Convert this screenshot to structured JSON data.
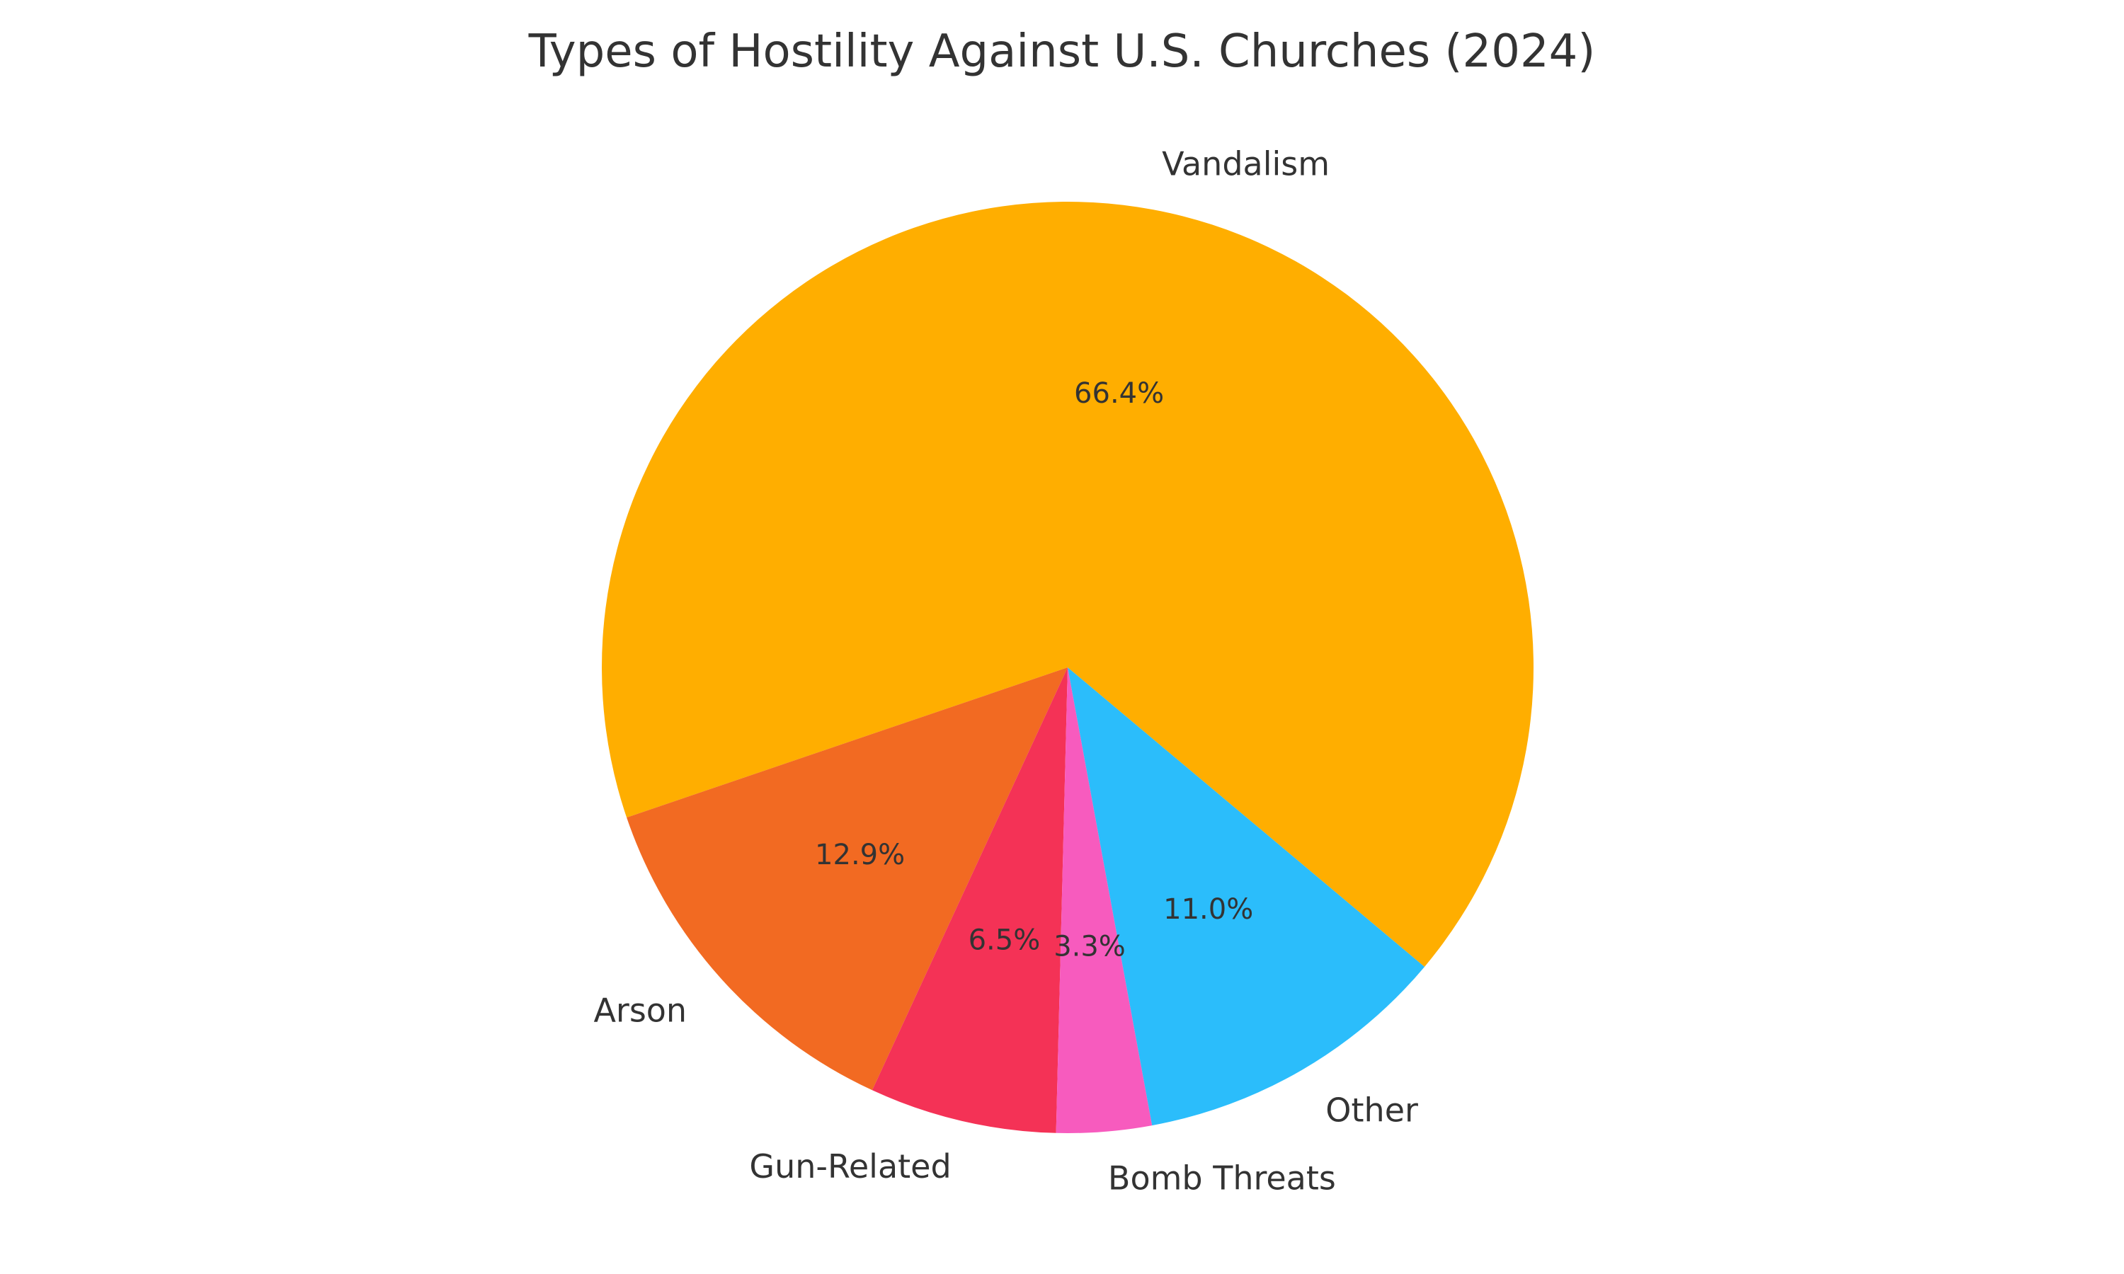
{
  "chart_data": {
    "type": "pie",
    "title": "Types of Hostility Against U.S. Churches (2024)",
    "start_angle_deg": -40,
    "direction": "counterclockwise",
    "slices": [
      {
        "label": "Vandalism",
        "value": 66.4,
        "pct_label": "66.4%",
        "color": "#FFAE00"
      },
      {
        "label": "Arson",
        "value": 12.9,
        "pct_label": "12.9%",
        "color": "#F26A22"
      },
      {
        "label": "Gun-Related",
        "value": 6.5,
        "pct_label": "6.5%",
        "color": "#F43256"
      },
      {
        "label": "Bomb Threats",
        "value": 3.3,
        "pct_label": "3.3%",
        "color": "#F75BBE"
      },
      {
        "label": "Other",
        "value": 11.0,
        "pct_label": "11.0%",
        "color": "#2BBDFB"
      }
    ]
  }
}
